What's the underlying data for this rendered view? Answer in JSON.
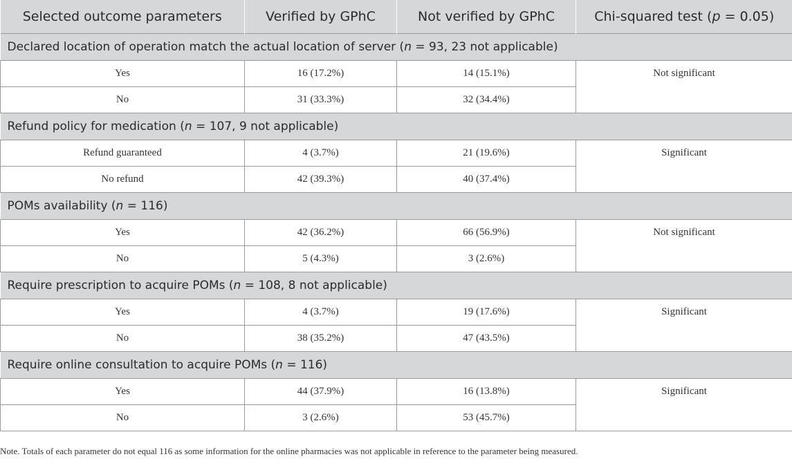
{
  "table": {
    "headers": {
      "col1": "Selected outcome parameters",
      "col2": "Verified by GPhC",
      "col3": "Not verified by GPhC",
      "col4_pre": "Chi-squared test (",
      "col4_italic": "p",
      "col4_post": " = 0.05)"
    },
    "groups": [
      {
        "title_pre": "Declared location of operation match the actual location of server (",
        "title_italic": "n",
        "title_post": " = 93, 23 not applicable)",
        "chi": "Not significant",
        "rows": [
          {
            "label": "Yes",
            "verified": "16 (17.2%)",
            "not_verified": "14 (15.1%)"
          },
          {
            "label": "No",
            "verified": "31 (33.3%)",
            "not_verified": "32 (34.4%)"
          }
        ]
      },
      {
        "title_pre": "Refund policy for medication (",
        "title_italic": "n",
        "title_post": " = 107, 9 not applicable)",
        "chi": "Significant",
        "rows": [
          {
            "label": "Refund guaranteed",
            "verified": "4 (3.7%)",
            "not_verified": "21 (19.6%)"
          },
          {
            "label": "No refund",
            "verified": "42 (39.3%)",
            "not_verified": "40 (37.4%)"
          }
        ]
      },
      {
        "title_pre": "POMs availability (",
        "title_italic": "n",
        "title_post": " = 116)",
        "chi": "Not significant",
        "rows": [
          {
            "label": "Yes",
            "verified": "42 (36.2%)",
            "not_verified": "66 (56.9%)"
          },
          {
            "label": "No",
            "verified": "5 (4.3%)",
            "not_verified": "3 (2.6%)"
          }
        ]
      },
      {
        "title_pre": "Require prescription to acquire POMs (",
        "title_italic": "n",
        "title_post": " = 108, 8 not applicable)",
        "chi": "Significant",
        "rows": [
          {
            "label": "Yes",
            "verified": "4 (3.7%)",
            "not_verified": "19 (17.6%)"
          },
          {
            "label": "No",
            "verified": "38 (35.2%)",
            "not_verified": "47 (43.5%)"
          }
        ]
      },
      {
        "title_pre": "Require online consultation to acquire POMs (",
        "title_italic": "n",
        "title_post": " = 116)",
        "chi": "Significant",
        "rows": [
          {
            "label": "Yes",
            "verified": "44 (37.9%)",
            "not_verified": "16 (13.8%)"
          },
          {
            "label": "No",
            "verified": "3 (2.6%)",
            "not_verified": "53 (45.7%)"
          }
        ]
      }
    ]
  },
  "note": "Note. Totals of each parameter do not equal 116 as some information for the online pharmacies was not applicable in reference to the parameter being measured."
}
